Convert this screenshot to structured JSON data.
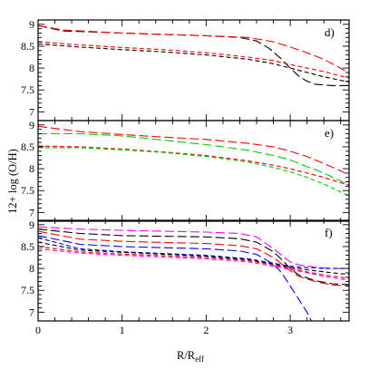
{
  "chart_data": [
    {
      "type": "line",
      "panel_label": "d)",
      "xlim": [
        0,
        3.7
      ],
      "ylim": [
        6.8,
        9.1
      ],
      "x_ticks": [
        0,
        1,
        2,
        3
      ],
      "y_ticks": [
        7,
        7.5,
        8,
        8.5,
        9
      ],
      "legend": "none",
      "series": [
        {
          "color": "#000000",
          "dash": "long",
          "x": [
            0,
            0.3,
            1.0,
            2.0,
            2.4,
            2.6,
            2.75,
            2.9,
            3.0,
            3.1,
            3.2,
            3.3,
            3.5,
            3.7
          ],
          "y": [
            8.97,
            8.85,
            8.8,
            8.74,
            8.7,
            8.62,
            8.45,
            8.2,
            8.0,
            7.82,
            7.7,
            7.63,
            7.6,
            7.6
          ]
        },
        {
          "color": "#ff0000",
          "dash": "long",
          "x": [
            0,
            0.3,
            1.0,
            2.0,
            2.5,
            2.8,
            3.0,
            3.2,
            3.4,
            3.6,
            3.7
          ],
          "y": [
            8.97,
            8.87,
            8.8,
            8.74,
            8.7,
            8.6,
            8.48,
            8.35,
            8.2,
            8.0,
            7.88
          ]
        },
        {
          "color": "#000000",
          "dash": "short",
          "x": [
            0,
            0.5,
            1.0,
            1.5,
            2.0,
            2.5,
            2.8,
            3.0,
            3.2,
            3.4,
            3.6,
            3.7
          ],
          "y": [
            8.55,
            8.48,
            8.42,
            8.37,
            8.3,
            8.2,
            8.1,
            8.0,
            7.9,
            7.8,
            7.72,
            7.68
          ]
        },
        {
          "color": "#ff0000",
          "dash": "short",
          "x": [
            0,
            0.5,
            1.0,
            1.5,
            2.0,
            2.5,
            2.8,
            3.0,
            3.2,
            3.4,
            3.6,
            3.7
          ],
          "y": [
            8.6,
            8.53,
            8.47,
            8.42,
            8.35,
            8.25,
            8.17,
            8.08,
            8.0,
            7.92,
            7.82,
            7.78
          ]
        }
      ]
    },
    {
      "type": "line",
      "panel_label": "e)",
      "xlim": [
        0,
        3.7
      ],
      "ylim": [
        6.8,
        9.1
      ],
      "x_ticks": [
        0,
        1,
        2,
        3
      ],
      "y_ticks": [
        7,
        7.5,
        8,
        8.5,
        9
      ],
      "legend": "none",
      "series": [
        {
          "color": "#ff0000",
          "dash": "long",
          "x": [
            0,
            0.5,
            1.0,
            1.5,
            2.0,
            2.5,
            2.8,
            3.0,
            3.2,
            3.4,
            3.6,
            3.7
          ],
          "y": [
            8.97,
            8.85,
            8.78,
            8.72,
            8.67,
            8.58,
            8.5,
            8.4,
            8.28,
            8.12,
            7.95,
            7.85
          ]
        },
        {
          "color": "#00cc00",
          "dash": "long",
          "x": [
            0,
            0.5,
            1.0,
            1.5,
            2.0,
            2.5,
            2.8,
            3.0,
            3.2,
            3.4,
            3.6,
            3.7
          ],
          "y": [
            8.8,
            8.8,
            8.75,
            8.65,
            8.55,
            8.42,
            8.3,
            8.2,
            8.05,
            7.9,
            7.72,
            7.62
          ]
        },
        {
          "color": "#ff0000",
          "dash": "short",
          "x": [
            0,
            0.5,
            1.0,
            1.5,
            2.0,
            2.5,
            2.8,
            3.0,
            3.2,
            3.4,
            3.6,
            3.7
          ],
          "y": [
            8.52,
            8.5,
            8.45,
            8.38,
            8.3,
            8.18,
            8.08,
            8.0,
            7.9,
            7.8,
            7.68,
            7.62
          ]
        },
        {
          "color": "#00cc00",
          "dash": "short",
          "x": [
            0,
            0.5,
            1.0,
            1.5,
            2.0,
            2.5,
            2.8,
            3.0,
            3.2,
            3.4,
            3.6,
            3.7
          ],
          "y": [
            8.48,
            8.48,
            8.43,
            8.37,
            8.28,
            8.15,
            8.03,
            7.93,
            7.8,
            7.65,
            7.47,
            7.38
          ]
        }
      ]
    },
    {
      "type": "line",
      "panel_label": "f)",
      "xlim": [
        0,
        3.7
      ],
      "ylim": [
        6.8,
        9.1
      ],
      "x_ticks": [
        0,
        1,
        2,
        3
      ],
      "y_ticks": [
        7,
        7.5,
        8,
        8.5,
        9
      ],
      "legend": "none",
      "series": [
        {
          "color": "#ff00ff",
          "dash": "long",
          "x": [
            0,
            0.5,
            1.0,
            2.0,
            2.4,
            2.6,
            2.8,
            2.9,
            3.0,
            3.1,
            3.3,
            3.5,
            3.7
          ],
          "y": [
            8.95,
            8.9,
            8.87,
            8.83,
            8.8,
            8.72,
            8.45,
            8.3,
            8.15,
            8.08,
            8.03,
            8.0,
            8.0
          ]
        },
        {
          "color": "#000000",
          "dash": "long",
          "x": [
            0,
            0.5,
            1.0,
            2.0,
            2.4,
            2.6,
            2.8,
            2.9,
            3.0,
            3.1,
            3.3,
            3.5,
            3.7
          ],
          "y": [
            8.9,
            8.8,
            8.75,
            8.72,
            8.68,
            8.6,
            8.38,
            8.2,
            8.0,
            7.85,
            7.72,
            7.65,
            7.63
          ]
        },
        {
          "color": "#ff0000",
          "dash": "long",
          "x": [
            0,
            0.5,
            1.0,
            2.0,
            2.4,
            2.6,
            2.8,
            2.9,
            3.0,
            3.1,
            3.3,
            3.5,
            3.7
          ],
          "y": [
            8.85,
            8.67,
            8.62,
            8.57,
            8.52,
            8.45,
            8.25,
            8.1,
            7.95,
            7.82,
            7.7,
            7.62,
            7.6
          ]
        },
        {
          "color": "#0000ff",
          "dash": "long",
          "x": [
            0,
            0.5,
            1.0,
            2.0,
            2.4,
            2.6,
            2.8,
            2.9,
            3.0,
            3.1,
            3.2,
            3.25
          ],
          "y": [
            8.75,
            8.55,
            8.5,
            8.45,
            8.4,
            8.32,
            8.1,
            7.9,
            7.6,
            7.3,
            7.0,
            6.8
          ]
        },
        {
          "color": "#0000ff",
          "dash": "short",
          "x": [
            0,
            0.5,
            1.0,
            2.0,
            2.5,
            2.8,
            3.0,
            3.2,
            3.4,
            3.6,
            3.7
          ],
          "y": [
            8.7,
            8.45,
            8.38,
            8.3,
            8.22,
            8.12,
            8.05,
            8.02,
            8.0,
            8.0,
            8.0
          ]
        },
        {
          "color": "#000000",
          "dash": "short",
          "x": [
            0,
            0.5,
            1.0,
            2.0,
            2.5,
            2.8,
            3.0,
            3.2,
            3.4,
            3.6,
            3.7
          ],
          "y": [
            8.6,
            8.42,
            8.37,
            8.28,
            8.2,
            8.1,
            8.03,
            7.97,
            7.92,
            7.88,
            7.87
          ]
        },
        {
          "color": "#ff0000",
          "dash": "short",
          "x": [
            0,
            0.5,
            1.0,
            2.0,
            2.5,
            2.8,
            3.0,
            3.2,
            3.4,
            3.6,
            3.7
          ],
          "y": [
            8.5,
            8.38,
            8.33,
            8.25,
            8.18,
            8.08,
            8.0,
            7.92,
            7.85,
            7.8,
            7.77
          ]
        },
        {
          "color": "#ff00ff",
          "dash": "short",
          "x": [
            0,
            0.5,
            1.0,
            2.0,
            2.5,
            2.8,
            3.0,
            3.2,
            3.4,
            3.6,
            3.7
          ],
          "y": [
            8.45,
            8.35,
            8.3,
            8.22,
            8.15,
            8.05,
            7.98,
            7.9,
            7.82,
            7.76,
            7.73
          ]
        }
      ]
    }
  ],
  "labels": {
    "ylabel": "12+ log (O/H)",
    "xlabel_main": "R/R",
    "xlabel_sub": "eff"
  }
}
